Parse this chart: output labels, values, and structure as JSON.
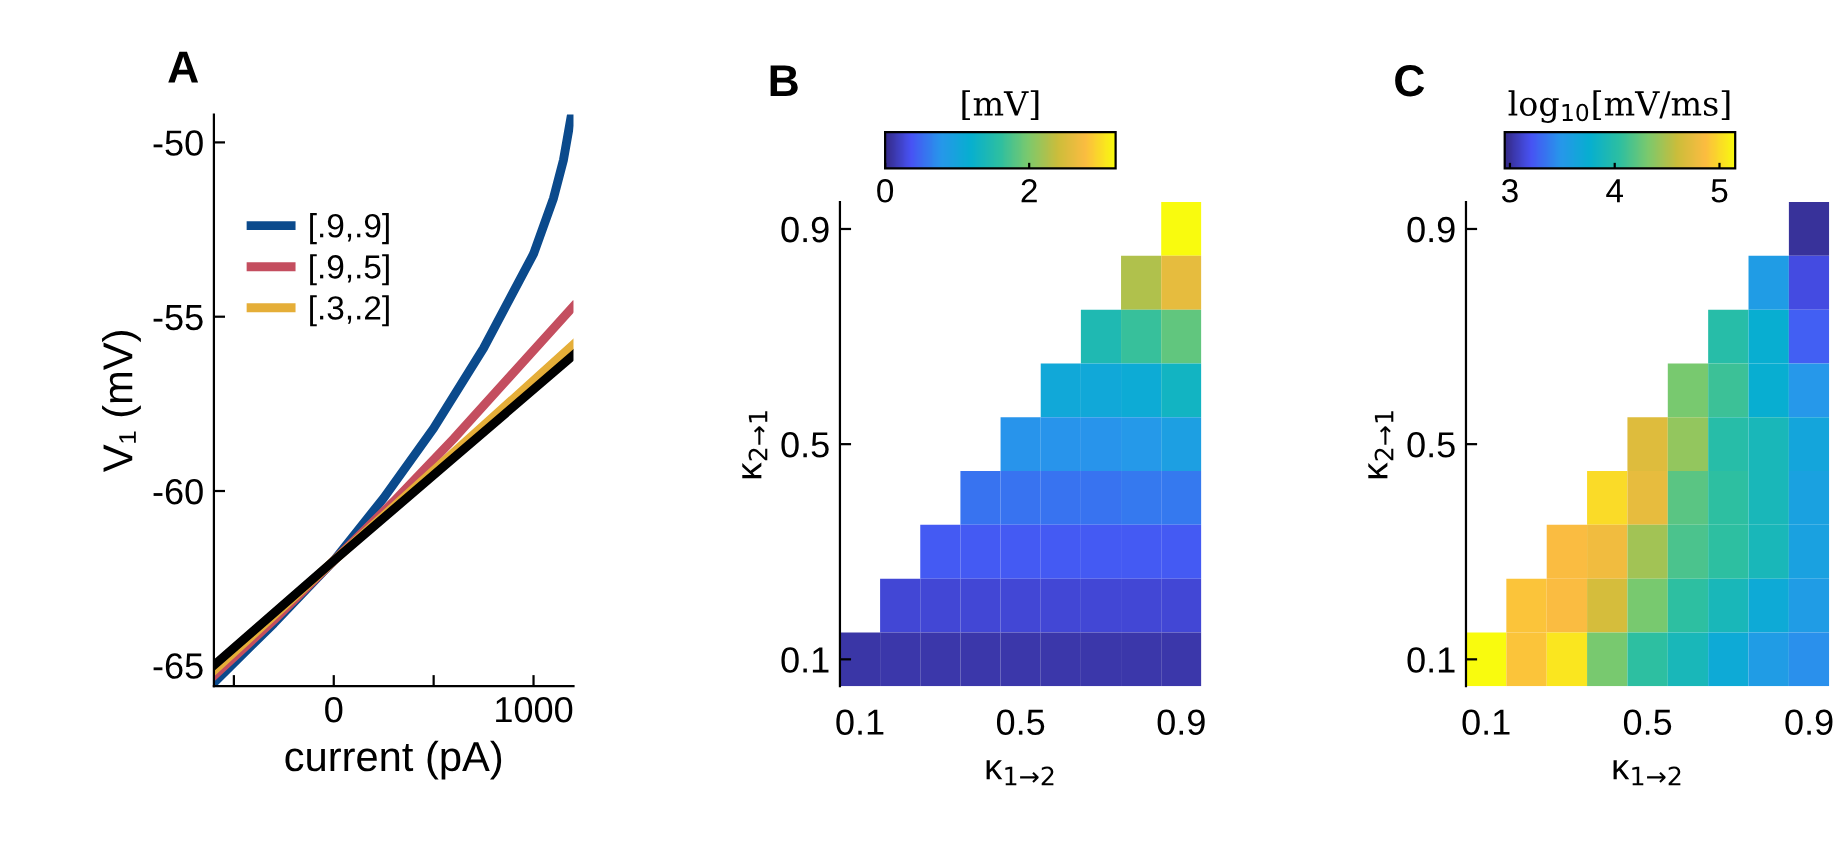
{
  "chart_data": [
    {
      "type": "line",
      "title": "A",
      "xlabel": "current (pA)",
      "ylabel": "V₁ (mV)",
      "xlim": [
        -600,
        1200
      ],
      "xticks": [
        {
          "value": -500,
          "label": null
        },
        0,
        {
          "value": 500,
          "label": null
        },
        1000
      ],
      "ylim": [
        -65.6,
        -49.2
      ],
      "yticks": [
        -65,
        -60,
        -55,
        -50
      ],
      "legend": "top left",
      "series": [
        {
          "name": "[.9,.9]",
          "color": "#0b4a8c",
          "x": [
            -600,
            -300,
            0,
            250,
            500,
            750,
            1000,
            1100,
            1150,
            1190
          ],
          "values": [
            -65.5,
            -63.8,
            -62,
            -60.2,
            -58.2,
            -55.9,
            -53.2,
            -51.6,
            -50.5,
            -49.2
          ]
        },
        {
          "name": "[.9,.5]",
          "color": "#c44e5f",
          "x": [
            -600,
            -300,
            0,
            300,
            600,
            900,
            1200
          ],
          "values": [
            -65.3,
            -63.7,
            -62,
            -60.3,
            -58.5,
            -56.6,
            -54.7
          ]
        },
        {
          "name": "[.3,.2]",
          "color": "#e5ae38",
          "x": [
            -600,
            0,
            600,
            1200
          ],
          "values": [
            -65.15,
            -62,
            -58.9,
            -55.8
          ]
        },
        {
          "color": "#000000",
          "x": [
            -600,
            0,
            600,
            1200
          ],
          "values": [
            -65.0,
            -62,
            -59.05,
            -56.1
          ]
        }
      ]
    },
    {
      "type": "heatmap",
      "title": "B",
      "xlabel": "κ$_{1→2}$",
      "ylabel": "κ$_{2→1}$",
      "clabel": "[mV]",
      "categories": [
        "0.1",
        null,
        null,
        null,
        "0.5",
        null,
        null,
        null,
        "0.9"
      ],
      "y_categories": [
        "0.9",
        null,
        null,
        null,
        "0.5",
        null,
        null,
        null,
        "0.1"
      ],
      "clim": [
        0,
        3.2
      ],
      "cticks": [
        0,
        2
      ],
      "cells": [
        [
          null,
          null,
          null,
          null,
          null,
          null,
          null,
          null,
          3.2
        ],
        [
          null,
          null,
          null,
          null,
          null,
          null,
          null,
          2.25,
          2.6
        ],
        [
          null,
          null,
          null,
          null,
          null,
          null,
          1.45,
          1.65,
          1.85
        ],
        [
          null,
          null,
          null,
          null,
          null,
          1.05,
          1.05,
          1.1,
          1.3
        ],
        [
          null,
          null,
          null,
          null,
          0.75,
          0.75,
          0.75,
          0.8,
          0.9
        ],
        [
          null,
          null,
          null,
          0.55,
          0.55,
          0.55,
          0.55,
          0.6,
          0.6
        ],
        [
          null,
          null,
          0.4,
          0.4,
          0.4,
          0.4,
          0.4,
          0.4,
          0.4
        ],
        [
          null,
          0.25,
          0.25,
          0.25,
          0.25,
          0.25,
          0.25,
          0.25,
          0.25
        ],
        [
          0.1,
          0.12,
          0.12,
          0.12,
          0.12,
          0.12,
          0.12,
          0.12,
          0.12
        ]
      ]
    },
    {
      "type": "heatmap",
      "title": "C",
      "xlabel": "κ$_{1→2}$",
      "ylabel": "κ$_{2→1}$",
      "clabel": "log$_{10}$[mV/ms]",
      "categories": [
        "0.1",
        null,
        null,
        null,
        "0.5",
        null,
        null,
        null,
        "0.9"
      ],
      "y_categories": [
        "0.9",
        null,
        null,
        null,
        "0.5",
        null,
        null,
        null,
        "0.1"
      ],
      "clim": [
        2.95,
        5.15
      ],
      "cticks": [
        3,
        4,
        5
      ],
      "cells": [
        [
          null,
          null,
          null,
          null,
          null,
          null,
          null,
          null,
          3.0
        ],
        [
          null,
          null,
          null,
          null,
          null,
          null,
          null,
          3.55,
          3.15
        ],
        [
          null,
          null,
          null,
          null,
          null,
          null,
          4.0,
          3.75,
          3.25
        ],
        [
          null,
          null,
          null,
          null,
          null,
          4.3,
          4.1,
          3.75,
          3.5
        ],
        [
          null,
          null,
          null,
          null,
          4.7,
          4.4,
          4.0,
          3.9,
          3.65
        ],
        [
          null,
          null,
          null,
          5.0,
          4.75,
          4.2,
          4.05,
          3.9,
          3.6
        ],
        [
          null,
          null,
          4.85,
          4.8,
          4.45,
          4.15,
          4.05,
          3.9,
          3.6
        ],
        [
          null,
          4.9,
          4.85,
          4.65,
          4.3,
          4.05,
          3.9,
          3.7,
          3.55
        ],
        [
          5.15,
          4.9,
          5.05,
          4.3,
          4.05,
          3.9,
          3.7,
          3.55,
          3.45
        ]
      ]
    }
  ]
}
